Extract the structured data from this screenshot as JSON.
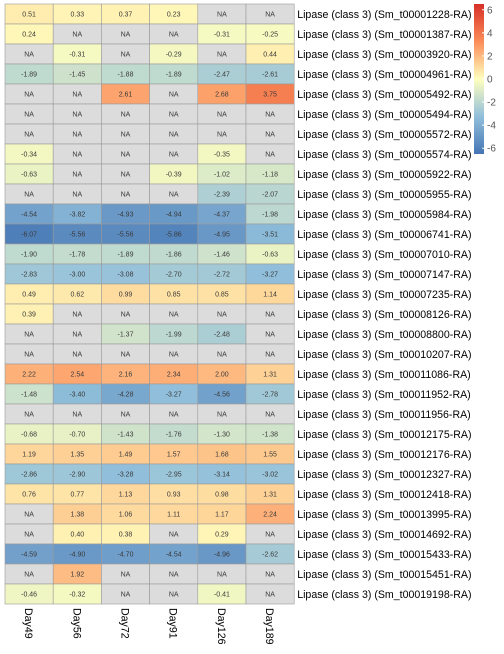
{
  "chart_data": {
    "type": "heatmap",
    "na_label": "NA",
    "columns": [
      "Day49",
      "Day56",
      "Day72",
      "Day91",
      "Day126",
      "Day189"
    ],
    "rows": [
      {
        "label": "Lipase (class 3) (Sm_t00001228-RA)",
        "values": [
          0.51,
          0.33,
          0.37,
          0.23,
          null,
          null
        ]
      },
      {
        "label": "Lipase (class 3) (Sm_t00001387-RA)",
        "values": [
          0.24,
          null,
          null,
          null,
          -0.31,
          -0.25
        ]
      },
      {
        "label": "Lipase (class 3) (Sm_t00003920-RA)",
        "values": [
          null,
          -0.31,
          null,
          -0.29,
          null,
          0.44
        ]
      },
      {
        "label": "Lipase (class 3) (Sm_t00004961-RA)",
        "values": [
          -1.89,
          -1.45,
          -1.88,
          -1.89,
          -2.47,
          -2.61
        ]
      },
      {
        "label": "Lipase (class 3) (Sm_t00005492-RA)",
        "values": [
          null,
          null,
          2.61,
          null,
          2.68,
          3.75
        ]
      },
      {
        "label": "Lipase (class 3) (Sm_t00005494-RA)",
        "values": [
          null,
          null,
          null,
          null,
          null,
          null
        ]
      },
      {
        "label": "Lipase (class 3) (Sm_t00005572-RA)",
        "values": [
          null,
          null,
          null,
          null,
          null,
          null
        ]
      },
      {
        "label": "Lipase (class 3) (Sm_t00005574-RA)",
        "values": [
          -0.34,
          null,
          null,
          null,
          -0.35,
          null
        ]
      },
      {
        "label": "Lipase (class 3) (Sm_t00005922-RA)",
        "values": [
          -0.63,
          null,
          null,
          -0.39,
          -1.02,
          -1.18
        ]
      },
      {
        "label": "Lipase (class 3) (Sm_t00005955-RA)",
        "values": [
          null,
          null,
          null,
          null,
          -2.39,
          -2.07
        ]
      },
      {
        "label": "Lipase (class 3) (Sm_t00005984-RA)",
        "values": [
          -4.54,
          -3.82,
          -4.93,
          -4.94,
          -4.37,
          -1.98
        ]
      },
      {
        "label": "Lipase (class 3) (Sm_t00006741-RA)",
        "values": [
          -6.07,
          -5.56,
          -5.56,
          -5.86,
          -4.95,
          -3.51
        ]
      },
      {
        "label": "Lipase (class 3) (Sm_t00007010-RA)",
        "values": [
          -1.9,
          -1.78,
          -1.89,
          -1.86,
          -1.46,
          -0.63
        ]
      },
      {
        "label": "Lipase (class 3) (Sm_t00007147-RA)",
        "values": [
          -2.83,
          -3.0,
          -3.08,
          -2.7,
          -2.72,
          -3.27
        ]
      },
      {
        "label": "Lipase (class 3) (Sm_t00007235-RA)",
        "values": [
          0.49,
          0.62,
          0.99,
          0.85,
          0.85,
          1.14
        ]
      },
      {
        "label": "Lipase (class 3) (Sm_t00008126-RA)",
        "values": [
          0.39,
          null,
          null,
          null,
          null,
          null
        ]
      },
      {
        "label": "Lipase (class 3) (Sm_t00008800-RA)",
        "values": [
          null,
          null,
          -1.37,
          -1.99,
          -2.48,
          null
        ]
      },
      {
        "label": "Lipase (class 3) (Sm_t00010207-RA)",
        "values": [
          null,
          null,
          null,
          null,
          null,
          null
        ]
      },
      {
        "label": "Lipase (class 3) (Sm_t00011086-RA)",
        "values": [
          2.22,
          2.54,
          2.16,
          2.34,
          2.0,
          1.31
        ]
      },
      {
        "label": "Lipase (class 3) (Sm_t00011952-RA)",
        "values": [
          -1.48,
          -3.4,
          -4.28,
          -3.27,
          -4.56,
          -2.78
        ]
      },
      {
        "label": "Lipase (class 3) (Sm_t00011956-RA)",
        "values": [
          null,
          null,
          null,
          null,
          null,
          null
        ]
      },
      {
        "label": "Lipase (class 3) (Sm_t00012175-RA)",
        "values": [
          -0.68,
          -0.7,
          -1.43,
          -1.76,
          -1.3,
          -1.38
        ]
      },
      {
        "label": "Lipase (class 3) (Sm_t00012176-RA)",
        "values": [
          1.19,
          1.35,
          1.49,
          1.57,
          1.68,
          1.55
        ]
      },
      {
        "label": "Lipase (class 3) (Sm_t00012327-RA)",
        "values": [
          -2.86,
          -2.9,
          -3.28,
          -2.95,
          -3.14,
          -3.02
        ]
      },
      {
        "label": "Lipase (class 3) (Sm_t00012418-RA)",
        "values": [
          0.76,
          0.77,
          1.13,
          0.93,
          0.98,
          1.31
        ]
      },
      {
        "label": "Lipase (class 3) (Sm_t00013995-RA)",
        "values": [
          null,
          1.38,
          1.06,
          1.11,
          1.17,
          2.24
        ]
      },
      {
        "label": "Lipase (class 3) (Sm_t00014692-RA)",
        "values": [
          null,
          0.4,
          0.38,
          null,
          0.29,
          null
        ]
      },
      {
        "label": "Lipase (class 3) (Sm_t00015433-RA)",
        "values": [
          -4.59,
          -4.9,
          -4.7,
          -4.54,
          -4.96,
          -2.62
        ]
      },
      {
        "label": "Lipase (class 3) (Sm_t00015451-RA)",
        "values": [
          null,
          1.92,
          null,
          null,
          null,
          null
        ]
      },
      {
        "label": "Lipase (class 3) (Sm_t00019198-RA)",
        "values": [
          -0.46,
          -0.32,
          null,
          null,
          -0.41,
          null
        ]
      }
    ],
    "color_scale": {
      "min": -6.5,
      "max": 6.5,
      "stops": [
        {
          "value": -6.5,
          "color": "#4575b4"
        },
        {
          "value": -3.25,
          "color": "#91bfdb"
        },
        {
          "value": 0,
          "color": "#ffffbf"
        },
        {
          "value": 3.25,
          "color": "#fc8d59"
        },
        {
          "value": 6.5,
          "color": "#d73027"
        }
      ],
      "na_color": "#dcdcdc"
    },
    "legend": {
      "ticks": [
        "6",
        "4",
        "2",
        "0",
        "-2",
        "-4",
        "-6"
      ],
      "tick_values": [
        6,
        4,
        2,
        0,
        -2,
        -4,
        -6
      ],
      "placement": "right"
    }
  }
}
